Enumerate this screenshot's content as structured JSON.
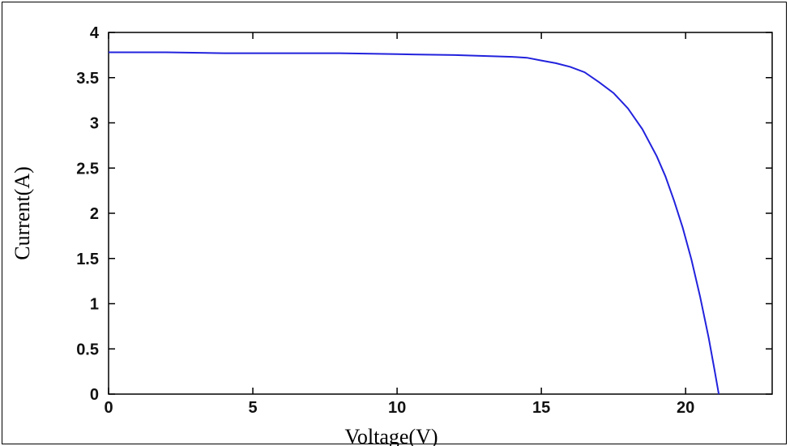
{
  "chart_data": {
    "type": "line",
    "xlabel": "Voltage(V)",
    "ylabel": "Current(A)",
    "xlim": [
      0,
      23
    ],
    "ylim": [
      0,
      4
    ],
    "x_ticks": [
      0,
      5,
      10,
      15,
      20
    ],
    "y_ticks": [
      0,
      0.5,
      1,
      1.5,
      2,
      2.5,
      3,
      3.5,
      4
    ],
    "x_tick_labels": [
      "0",
      "5",
      "10",
      "15",
      "20"
    ],
    "y_tick_labels": [
      "0",
      "0.5",
      "1",
      "1.5",
      "2",
      "2.5",
      "3",
      "3.5",
      "4"
    ],
    "grid": false,
    "line_color": "#2222dd",
    "series": [
      {
        "x": [
          0,
          2,
          4,
          6,
          8,
          10,
          12,
          13,
          14,
          14.5,
          15,
          15.5,
          16,
          16.5,
          17,
          17.5,
          18,
          18.5,
          19,
          19.3,
          19.6,
          19.9,
          20.2,
          20.5,
          20.8,
          21.0,
          21.15
        ],
        "y": [
          3.78,
          3.78,
          3.77,
          3.77,
          3.77,
          3.76,
          3.75,
          3.74,
          3.73,
          3.72,
          3.69,
          3.66,
          3.62,
          3.56,
          3.45,
          3.33,
          3.16,
          2.93,
          2.63,
          2.41,
          2.14,
          1.84,
          1.49,
          1.08,
          0.62,
          0.27,
          0.0
        ]
      }
    ]
  }
}
